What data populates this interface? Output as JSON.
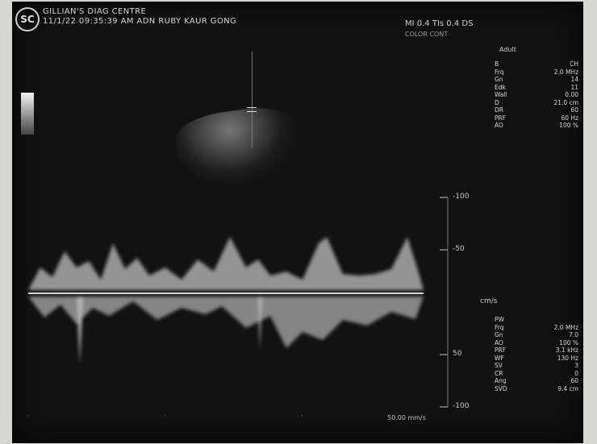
{
  "header": {
    "logo_text": "SC",
    "clinic": "GILLIAN'S DIAG CENTRE",
    "session": "11/1/22 09:35:39 AM ADN  RUBY KAUR GONG",
    "mode_info": "MI 0.4   TIs 0.4  DS",
    "mode_sub": "COLOR CONT",
    "probe_mode": "Adult"
  },
  "params_top": [
    {
      "label": "B",
      "value": "CH"
    },
    {
      "label": "Frq",
      "value": "2.0 MHz"
    },
    {
      "label": "Gn",
      "value": "14"
    },
    {
      "label": "Edk",
      "value": "11"
    },
    {
      "label": "Wall",
      "value": "0.00"
    },
    {
      "label": "D",
      "value": "21.0 cm"
    },
    {
      "label": "DR",
      "value": "60"
    },
    {
      "label": "PRF",
      "value": "60 Hz"
    },
    {
      "label": "AO",
      "value": "100 %"
    }
  ],
  "params_bottom": [
    {
      "label": "PW",
      "value": ""
    },
    {
      "label": "Frq",
      "value": "2.0 MHz"
    },
    {
      "label": "Gn",
      "value": "7.0"
    },
    {
      "label": "AO",
      "value": "100 %"
    },
    {
      "label": "PRF",
      "value": "3.1 kHz"
    },
    {
      "label": "WF",
      "value": "130 Hz"
    },
    {
      "label": "SV",
      "value": "3"
    },
    {
      "label": "CR",
      "value": "0"
    },
    {
      "label": "Ang",
      "value": "60"
    },
    {
      "label": "SVD",
      "value": "9.4 cm"
    }
  ],
  "scale": {
    "unit": "cm/s",
    "labels": [
      "-100",
      "-50",
      "50",
      "-100"
    ]
  },
  "sweep_speed": "50.00 mm/s"
}
